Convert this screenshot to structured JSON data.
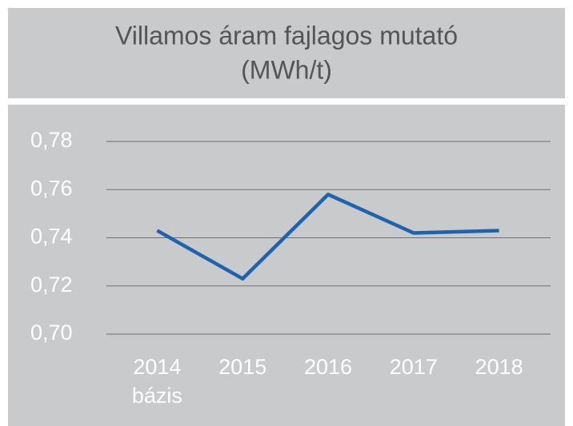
{
  "chart_data": {
    "type": "line",
    "title": [
      "Villamos áram fajlagos mutató",
      "(MWh/t)"
    ],
    "categories": [
      "2014",
      "2015",
      "2016",
      "2017",
      "2018"
    ],
    "annotation": "bázis",
    "series": [
      {
        "name": "Villamos áram fajlagos mutató",
        "color": "#1e63ae",
        "values": [
          0.743,
          0.723,
          0.758,
          0.742,
          0.743
        ]
      }
    ],
    "ylim": [
      0.7,
      0.78
    ],
    "yticks": [
      {
        "value": 0.7,
        "label": "0,70"
      },
      {
        "value": 0.72,
        "label": "0,72"
      },
      {
        "value": 0.74,
        "label": "0,74"
      },
      {
        "value": 0.76,
        "label": "0,76"
      },
      {
        "value": 0.78,
        "label": "0,78"
      }
    ],
    "grid": true
  }
}
